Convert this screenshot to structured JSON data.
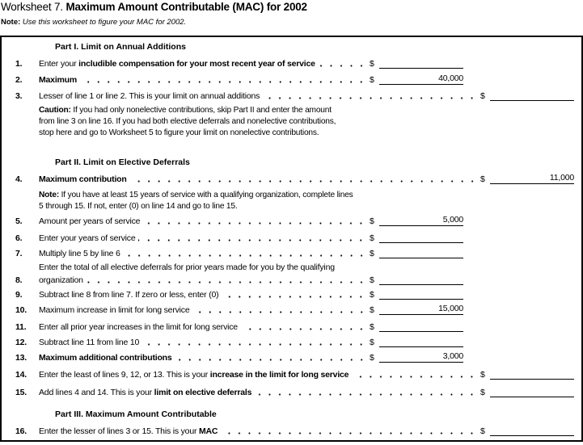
{
  "title": {
    "prefix": "Worksheet 7.",
    "bold": "Maximum Amount Contributable (MAC) for 2002"
  },
  "note": {
    "label": "Note:",
    "text": "Use this worksheet to figure your MAC for 2002."
  },
  "parts": {
    "part1": "Part I. Limit on Annual Additions",
    "part2": "Part II. Limit on Elective Deferrals",
    "part3": "Part III. Maximum Amount Contributable"
  },
  "caution": {
    "label": "Caution:",
    "text": "If you had only nonelective contributions, skip Part II and enter the amount from line 3 on line 16. If you had both elective deferrals and nonelective contributions, stop here and go to Worksheet 5 to figure your limit on nonelective contributions."
  },
  "note2": {
    "label": "Note:",
    "text": "If you have at least 15 years of service with a qualifying organization, complete lines 5 through 15. If not, enter (0) on line 14 and go to line 15."
  },
  "currency": "$",
  "lines": [
    {
      "num": "1.",
      "pre": "Enter your ",
      "bold": "includible compensation for your most recent year of service",
      "post": "",
      "value": ""
    },
    {
      "num": "2.",
      "pre": "",
      "bold": "Maximum",
      "post": "",
      "value": "40,000"
    },
    {
      "num": "3.",
      "pre": "Lesser of line 1 or line 2. This is your limit on annual additions",
      "bold": "",
      "post": "",
      "value": ""
    },
    {
      "num": "4.",
      "pre": "",
      "bold": "Maximum contribution",
      "post": "",
      "value": "11,000"
    },
    {
      "num": "5.",
      "pre": "Amount per years of service",
      "bold": "",
      "post": "",
      "value": "5,000"
    },
    {
      "num": "6.",
      "pre": "Enter your years of service",
      "bold": "",
      "post": "",
      "value": ""
    },
    {
      "num": "7.",
      "pre": "Multiply line 5 by line 6",
      "bold": "",
      "post": "",
      "value": ""
    },
    {
      "num": "8.",
      "pre": "organization",
      "bold": "",
      "post": "",
      "value": "",
      "first_line": "Enter the total of all elective deferrals for prior years made for you by the qualifying"
    },
    {
      "num": "9.",
      "pre": "Subtract line 8 from line 7. If zero or less, enter (0)",
      "bold": "",
      "post": "",
      "value": ""
    },
    {
      "num": "10.",
      "pre": "Maximum increase in limit for long service",
      "bold": "",
      "post": "",
      "value": "15,000"
    },
    {
      "num": "11.",
      "pre": "Enter all prior year increases in the limit for long service",
      "bold": "",
      "post": "",
      "value": ""
    },
    {
      "num": "12.",
      "pre": "Subtract line 11 from line 10",
      "bold": "",
      "post": "",
      "value": ""
    },
    {
      "num": "13.",
      "pre": "",
      "bold": "Maximum additional contributions",
      "post": "",
      "value": "3,000"
    },
    {
      "num": "14.",
      "pre": "Enter the least of lines 9, 12, or 13. This is your ",
      "bold": "increase in the limit for long service",
      "post": "",
      "value": ""
    },
    {
      "num": "15.",
      "pre": "Add lines 4 and 14. This is your ",
      "bold": "limit on elective deferrals",
      "post": "",
      "value": ""
    },
    {
      "num": "16.",
      "pre": "Enter the lesser of lines 3 or 15. This is your ",
      "bold": "MAC",
      "post": "",
      "value": ""
    }
  ]
}
